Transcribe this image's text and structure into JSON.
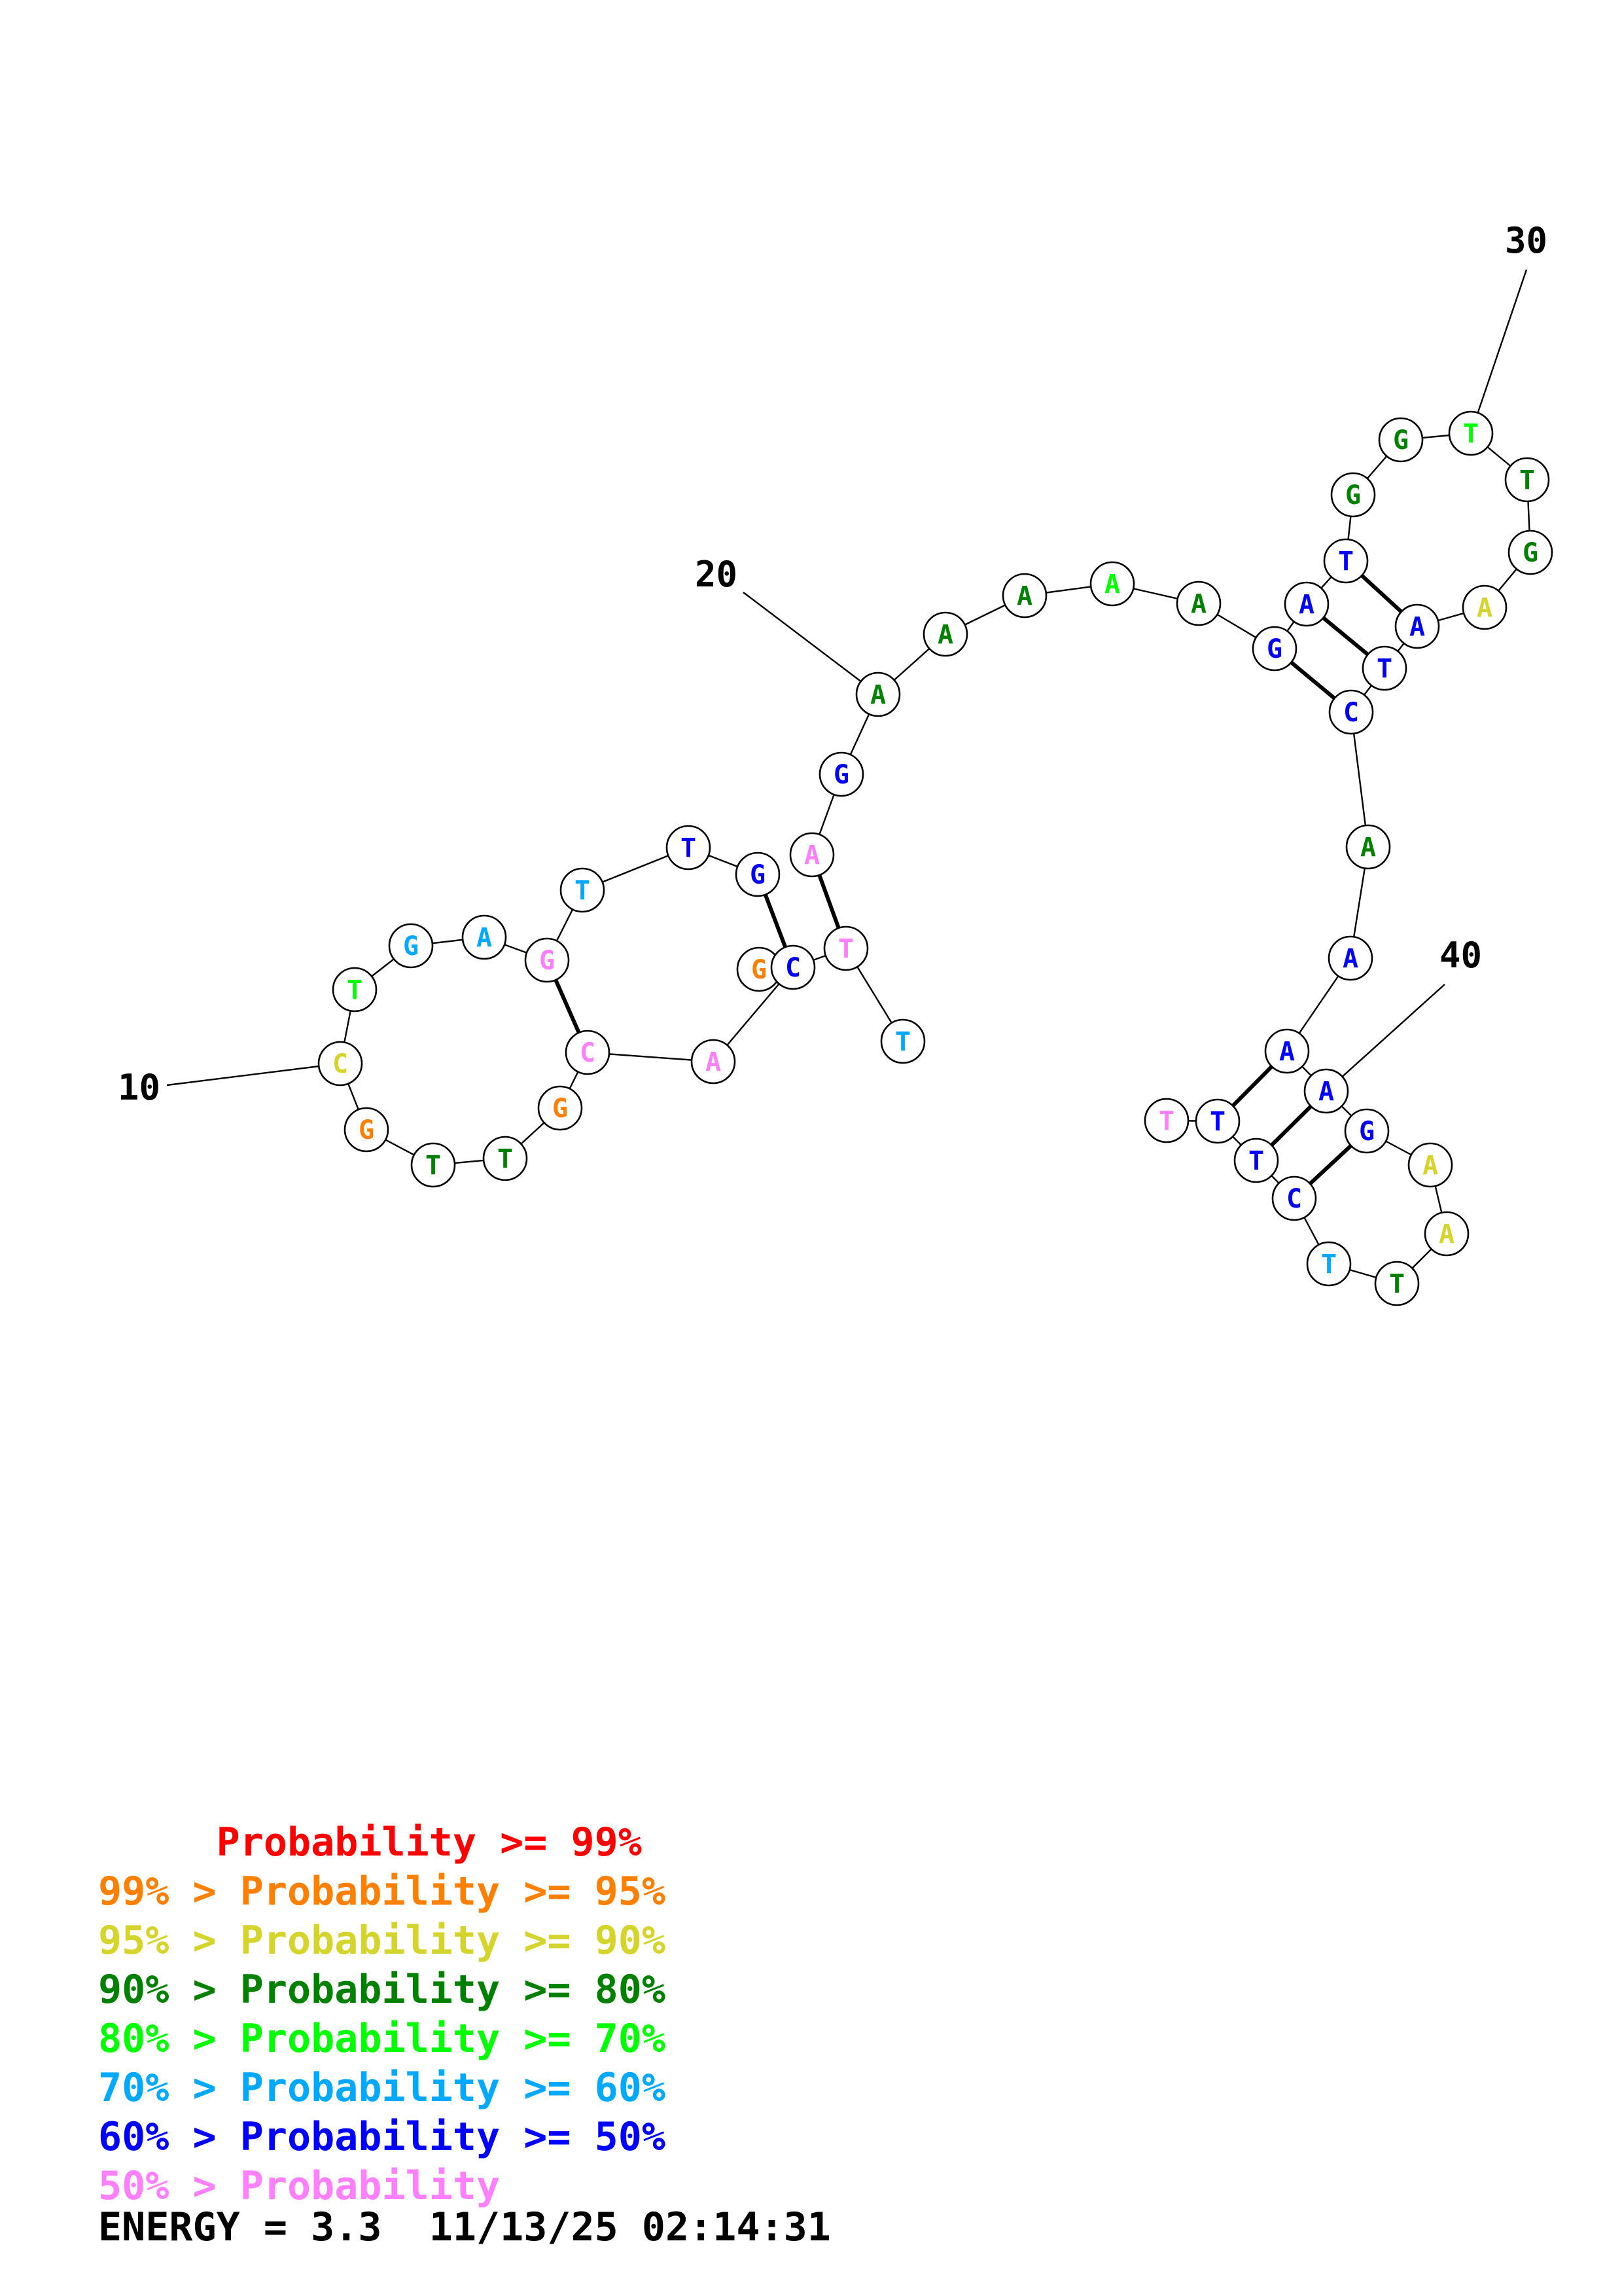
{
  "colors": {
    "p99": "#ff0000",
    "p95": "#ff8000",
    "p90": "#d4d42c",
    "p80": "#008000",
    "p70": "#00ff00",
    "p60": "#00a8ff",
    "p50": "#0000ff",
    "plt50": "#ff80ff"
  },
  "sequence": [
    {
      "n": 6,
      "base": "G",
      "prob": "p95"
    },
    {
      "n": 7,
      "base": "T",
      "prob": "p80"
    },
    {
      "n": 8,
      "base": "T",
      "prob": "p80"
    },
    {
      "n": 9,
      "base": "G",
      "prob": "p95"
    },
    {
      "n": 10,
      "base": "C",
      "prob": "p90"
    },
    {
      "n": 11,
      "base": "T",
      "prob": "p70"
    },
    {
      "n": 12,
      "base": "G",
      "prob": "p60"
    },
    {
      "n": 13,
      "base": "A",
      "prob": "p60"
    },
    {
      "n": 14,
      "base": "G",
      "prob": "plt50"
    },
    {
      "n": 15,
      "base": "T",
      "prob": "p60"
    },
    {
      "n": 16,
      "base": "T",
      "prob": "p50"
    },
    {
      "n": 17,
      "base": "G",
      "prob": "p50"
    },
    {
      "n": 18,
      "base": "A",
      "prob": "plt50"
    },
    {
      "n": 19,
      "base": "G",
      "prob": "p50"
    },
    {
      "n": 20,
      "base": "A",
      "prob": "p80"
    },
    {
      "n": 21,
      "base": "A",
      "prob": "p80"
    },
    {
      "n": 22,
      "base": "A",
      "prob": "p80"
    },
    {
      "n": 23,
      "base": "A",
      "prob": "p70"
    },
    {
      "n": 24,
      "base": "A",
      "prob": "p80"
    },
    {
      "n": 25,
      "base": "G",
      "prob": "p50"
    },
    {
      "n": 26,
      "base": "A",
      "prob": "p50"
    },
    {
      "n": 27,
      "base": "T",
      "prob": "p50"
    },
    {
      "n": 28,
      "base": "G",
      "prob": "p80"
    },
    {
      "n": 29,
      "base": "G",
      "prob": "p80"
    },
    {
      "n": 30,
      "base": "T",
      "prob": "p70"
    },
    {
      "n": 31,
      "base": "T",
      "prob": "p80"
    },
    {
      "n": 32,
      "base": "G",
      "prob": "p80"
    },
    {
      "n": 33,
      "base": "A",
      "prob": "p90"
    },
    {
      "n": 34,
      "base": "A",
      "prob": "p50"
    },
    {
      "n": 35,
      "base": "T",
      "prob": "p50"
    },
    {
      "n": 36,
      "base": "C",
      "prob": "p50"
    },
    {
      "n": 37,
      "base": "A",
      "prob": "p80"
    },
    {
      "n": 38,
      "base": "A",
      "prob": "p50"
    },
    {
      "n": 39,
      "base": "A",
      "prob": "p50"
    },
    {
      "n": 40,
      "base": "A",
      "prob": "p50"
    },
    {
      "n": 41,
      "base": "G",
      "prob": "p50"
    },
    {
      "n": 42,
      "base": "A",
      "prob": "p90"
    },
    {
      "n": 43,
      "base": "A",
      "prob": "p90"
    },
    {
      "n": 44,
      "base": "T",
      "prob": "p80"
    },
    {
      "n": 45,
      "base": "T",
      "prob": "p60"
    },
    {
      "n": 46,
      "base": "C",
      "prob": "p50"
    },
    {
      "n": 47,
      "base": "T",
      "prob": "p50"
    },
    {
      "n": 48,
      "base": "T",
      "prob": "p50"
    },
    {
      "n": 49,
      "base": "T",
      "prob": "plt50"
    }
  ],
  "extra_left": [
    {
      "id": "g-a",
      "base": "A",
      "prob": "plt50"
    },
    {
      "id": "g-c1",
      "base": "C",
      "prob": "plt50"
    },
    {
      "id": "g-g",
      "base": "G",
      "prob": "p95"
    },
    {
      "id": "g-c2",
      "base": "C",
      "prob": "p50"
    },
    {
      "id": "g-t1",
      "base": "T",
      "prob": "plt50"
    },
    {
      "id": "g-t2",
      "base": "T",
      "prob": "p60"
    }
  ],
  "position_labels": [
    {
      "n": 10,
      "text": "10"
    },
    {
      "n": 20,
      "text": "20"
    },
    {
      "n": 30,
      "text": "30"
    },
    {
      "n": 40,
      "text": "40"
    }
  ],
  "legend": [
    {
      "prefix": "     ",
      "text": "Probability >= 99%",
      "prob": "p99"
    },
    {
      "prefix": "99% > ",
      "text": "Probability >= 95%",
      "prob": "p95"
    },
    {
      "prefix": "95% > ",
      "text": "Probability >= 90%",
      "prob": "p90"
    },
    {
      "prefix": "90% > ",
      "text": "Probability >= 80%",
      "prob": "p80"
    },
    {
      "prefix": "80% > ",
      "text": "Probability >= 70%",
      "prob": "p70"
    },
    {
      "prefix": "70% > ",
      "text": "Probability >= 60%",
      "prob": "p60"
    },
    {
      "prefix": "60% > ",
      "text": "Probability >= 50%",
      "prob": "p50"
    },
    {
      "prefix": "50% > ",
      "text": "Probability",
      "prob": "plt50"
    }
  ],
  "footer": {
    "energy": "ENERGY = 3.3",
    "timestamp": "11/13/25 02:14:31"
  }
}
